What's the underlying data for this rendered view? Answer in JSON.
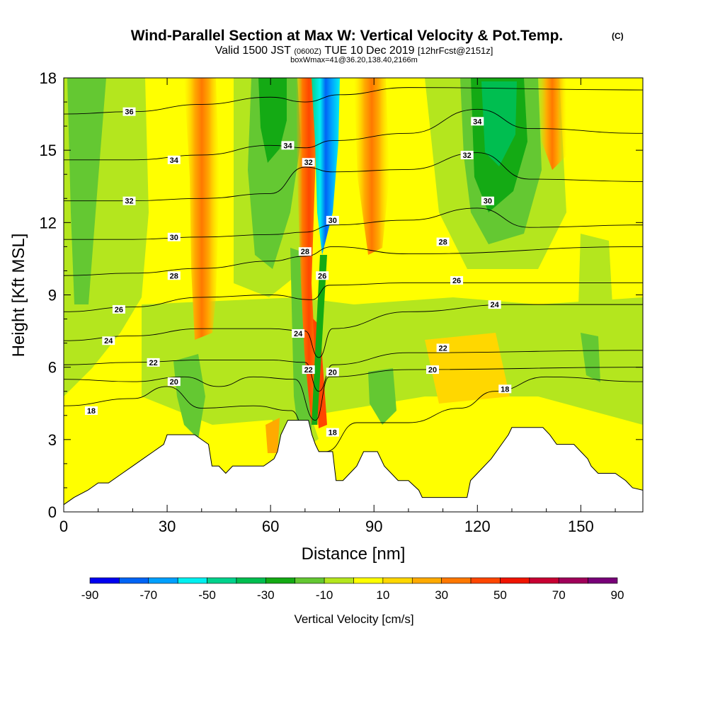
{
  "chart_data": {
    "type": "heatmap",
    "title": "Wind-Parallel Section at Max W: Vertical Velocity & Pot.Temp.",
    "title_mark": "(C)",
    "subtitle": {
      "part1": "Valid 1500 JST",
      "part2": "(0600Z)",
      "part3": "TUE 10 Dec 2019",
      "part4": "[12hrFcst@2151z]"
    },
    "subtitle2": "boxWmax=41@36.20,138.40,2166m",
    "xlabel": "Distance [nm]",
    "ylabel": "Height [Kft MSL]",
    "xlim": [
      0,
      168
    ],
    "ylim": [
      0,
      18
    ],
    "xticks": [
      "0",
      "30",
      "60",
      "90",
      "120",
      "150"
    ],
    "yticks": [
      "0",
      "3",
      "6",
      "9",
      "12",
      "15",
      "18"
    ],
    "colorbar": {
      "label": "Vertical Velocity [cm/s]",
      "ticks": [
        "-90",
        "-70",
        "-50",
        "-30",
        "-10",
        "10",
        "30",
        "50",
        "70",
        "90"
      ],
      "levels": [
        -90,
        -80,
        -70,
        -60,
        -50,
        -40,
        -30,
        -20,
        -10,
        0,
        10,
        20,
        30,
        40,
        50,
        60,
        70,
        80,
        90
      ],
      "colors": [
        "#0000f0",
        "#0064f5",
        "#00a0ff",
        "#00f0f0",
        "#00d28c",
        "#00be50",
        "#14aa14",
        "#64c832",
        "#b4e61e",
        "#ffff00",
        "#ffd700",
        "#ffaa00",
        "#ff7800",
        "#ff4600",
        "#f01400",
        "#c80032",
        "#a0005a",
        "#780078"
      ]
    },
    "terrain_kft": [
      [
        0,
        0.3
      ],
      [
        3,
        0.6
      ],
      [
        7,
        0.9
      ],
      [
        10,
        1.2
      ],
      [
        13,
        1.2
      ],
      [
        17,
        1.6
      ],
      [
        20,
        1.9
      ],
      [
        23,
        2.2
      ],
      [
        26,
        2.5
      ],
      [
        29,
        2.8
      ],
      [
        30,
        3.2
      ],
      [
        38,
        3.2
      ],
      [
        42,
        2.8
      ],
      [
        43,
        1.9
      ],
      [
        45,
        1.9
      ],
      [
        47,
        1.6
      ],
      [
        49,
        1.9
      ],
      [
        51,
        1.9
      ],
      [
        58,
        1.9
      ],
      [
        61,
        2.2
      ],
      [
        62,
        2.5
      ],
      [
        63,
        3.2
      ],
      [
        64,
        3.5
      ],
      [
        65,
        3.8
      ],
      [
        71,
        3.8
      ],
      [
        72,
        3.2
      ],
      [
        73,
        2.8
      ],
      [
        74,
        2.5
      ],
      [
        78,
        2.5
      ],
      [
        79,
        1.3
      ],
      [
        81,
        1.3
      ],
      [
        83,
        1.6
      ],
      [
        85,
        1.9
      ],
      [
        87,
        2.5
      ],
      [
        91,
        2.5
      ],
      [
        93,
        1.9
      ],
      [
        95,
        1.6
      ],
      [
        97,
        1.3
      ],
      [
        100,
        1.3
      ],
      [
        103,
        0.9
      ],
      [
        104,
        0.6
      ],
      [
        117,
        0.6
      ],
      [
        118,
        1.3
      ],
      [
        120,
        1.6
      ],
      [
        124,
        2.2
      ],
      [
        127,
        2.8
      ],
      [
        129,
        3.2
      ],
      [
        130,
        3.5
      ],
      [
        139,
        3.5
      ],
      [
        141,
        3.2
      ],
      [
        143,
        2.8
      ],
      [
        148,
        2.8
      ],
      [
        150,
        2.5
      ],
      [
        152,
        2.2
      ],
      [
        153,
        1.9
      ],
      [
        155,
        1.6
      ],
      [
        160,
        1.6
      ],
      [
        163,
        1.3
      ],
      [
        165,
        1.0
      ],
      [
        168,
        0.9
      ]
    ],
    "theta_contours": [
      {
        "label": "18",
        "points": [
          [
            0,
            4.4
          ],
          [
            20,
            4.7
          ],
          [
            30,
            5.2
          ],
          [
            40,
            4.3
          ],
          [
            55,
            4.4
          ],
          [
            66,
            4.2
          ],
          [
            72,
            2.5
          ],
          [
            76,
            2.5
          ],
          [
            85,
            3.7
          ],
          [
            100,
            3.7
          ],
          [
            115,
            4.3
          ],
          [
            125,
            5.0
          ],
          [
            140,
            5.6
          ],
          [
            168,
            5.4
          ]
        ],
        "label_at": [
          [
            8,
            4.2
          ],
          [
            78,
            3.3
          ],
          [
            128,
            5.1
          ]
        ]
      },
      {
        "label": "20",
        "points": [
          [
            0,
            5.5
          ],
          [
            20,
            5.4
          ],
          [
            35,
            5.6
          ],
          [
            45,
            5.2
          ],
          [
            55,
            5.6
          ],
          [
            67,
            5.5
          ],
          [
            73,
            3.8
          ],
          [
            77,
            5.6
          ],
          [
            100,
            5.9
          ],
          [
            168,
            6.0
          ]
        ],
        "label_at": [
          [
            32,
            5.4
          ],
          [
            78,
            5.8
          ],
          [
            107,
            5.9
          ]
        ]
      },
      {
        "label": "22",
        "points": [
          [
            0,
            6.1
          ],
          [
            20,
            6.2
          ],
          [
            40,
            6.3
          ],
          [
            60,
            6.3
          ],
          [
            70,
            6.2
          ],
          [
            74,
            5.0
          ],
          [
            78,
            6.1
          ],
          [
            100,
            6.6
          ],
          [
            168,
            6.7
          ]
        ],
        "label_at": [
          [
            26,
            6.2
          ],
          [
            71,
            5.9
          ],
          [
            110,
            6.8
          ]
        ]
      },
      {
        "label": "24",
        "points": [
          [
            0,
            7.1
          ],
          [
            20,
            7.3
          ],
          [
            40,
            7.6
          ],
          [
            60,
            7.6
          ],
          [
            70,
            7.5
          ],
          [
            74,
            6.4
          ],
          [
            78,
            7.6
          ],
          [
            100,
            8.3
          ],
          [
            130,
            8.6
          ],
          [
            168,
            8.6
          ]
        ],
        "label_at": [
          [
            13,
            7.1
          ],
          [
            68,
            7.4
          ],
          [
            125,
            8.6
          ]
        ]
      },
      {
        "label": "26",
        "points": [
          [
            0,
            8.3
          ],
          [
            20,
            8.5
          ],
          [
            40,
            8.9
          ],
          [
            60,
            9.0
          ],
          [
            72,
            8.8
          ],
          [
            77,
            9.4
          ],
          [
            100,
            9.5
          ],
          [
            168,
            9.5
          ]
        ],
        "label_at": [
          [
            16,
            8.4
          ],
          [
            75,
            9.8
          ],
          [
            114,
            9.6
          ]
        ]
      },
      {
        "label": "28",
        "points": [
          [
            0,
            9.8
          ],
          [
            20,
            9.9
          ],
          [
            40,
            10.1
          ],
          [
            60,
            10.4
          ],
          [
            70,
            10.6
          ],
          [
            78,
            11.0
          ],
          [
            100,
            10.7
          ],
          [
            168,
            11.0
          ]
        ],
        "label_at": [
          [
            32,
            9.8
          ],
          [
            70,
            10.8
          ],
          [
            110,
            11.2
          ]
        ]
      },
      {
        "label": "30",
        "points": [
          [
            0,
            11.3
          ],
          [
            20,
            11.3
          ],
          [
            40,
            11.4
          ],
          [
            60,
            11.5
          ],
          [
            70,
            11.6
          ],
          [
            78,
            11.9
          ],
          [
            100,
            12.1
          ],
          [
            120,
            12.6
          ],
          [
            135,
            11.8
          ],
          [
            168,
            11.9
          ]
        ],
        "label_at": [
          [
            32,
            11.4
          ],
          [
            78,
            12.1
          ],
          [
            123,
            12.9
          ]
        ]
      },
      {
        "label": "32",
        "points": [
          [
            0,
            12.9
          ],
          [
            20,
            12.9
          ],
          [
            40,
            13.0
          ],
          [
            60,
            13.2
          ],
          [
            70,
            14.3
          ],
          [
            78,
            14.1
          ],
          [
            100,
            14.2
          ],
          [
            120,
            14.9
          ],
          [
            135,
            13.8
          ],
          [
            168,
            13.7
          ]
        ],
        "label_at": [
          [
            19,
            12.9
          ],
          [
            71,
            14.5
          ],
          [
            117,
            14.8
          ]
        ]
      },
      {
        "label": "34",
        "points": [
          [
            0,
            14.6
          ],
          [
            20,
            14.6
          ],
          [
            40,
            14.8
          ],
          [
            60,
            15.2
          ],
          [
            70,
            15.1
          ],
          [
            78,
            15.4
          ],
          [
            100,
            15.7
          ],
          [
            120,
            16.7
          ],
          [
            135,
            15.9
          ],
          [
            168,
            15.7
          ]
        ],
        "label_at": [
          [
            32,
            14.6
          ],
          [
            65,
            15.2
          ],
          [
            120,
            16.2
          ]
        ]
      },
      {
        "label": "36",
        "points": [
          [
            0,
            16.5
          ],
          [
            20,
            16.6
          ],
          [
            40,
            16.9
          ],
          [
            60,
            17.2
          ],
          [
            70,
            17.0
          ],
          [
            80,
            17.3
          ],
          [
            100,
            17.6
          ],
          [
            168,
            17.5
          ]
        ],
        "label_at": [
          [
            19,
            16.6
          ]
        ]
      }
    ]
  }
}
